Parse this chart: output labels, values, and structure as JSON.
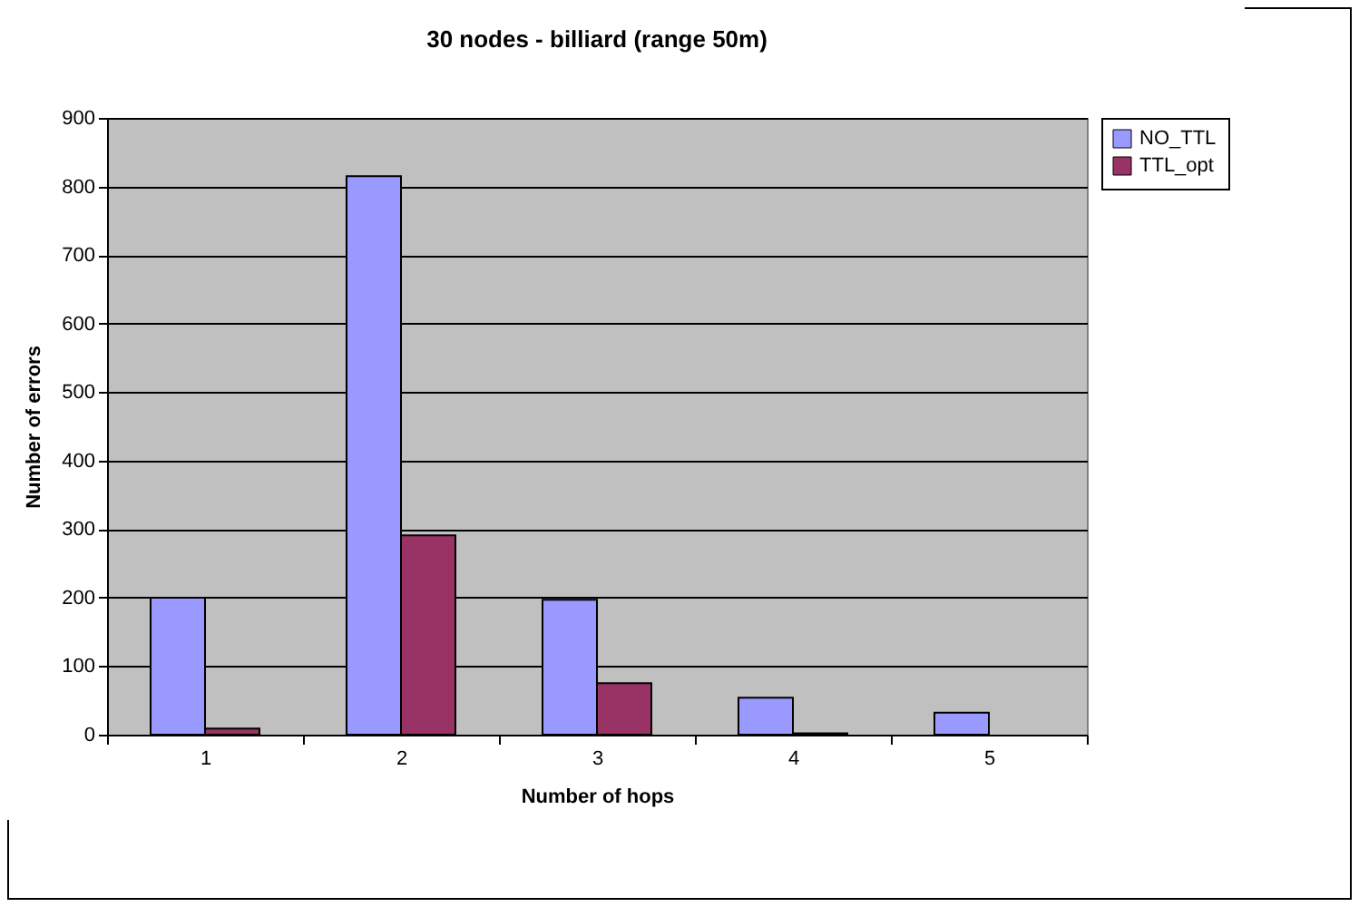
{
  "chart_data": {
    "type": "bar",
    "title": "30 nodes - billiard (range 50m)",
    "xlabel": "Number of hops",
    "ylabel": "Number of errors",
    "categories": [
      "1",
      "2",
      "3",
      "4",
      "5"
    ],
    "series": [
      {
        "name": "NO_TTL",
        "color": "#9999ff",
        "values": [
          200,
          815,
          197,
          54,
          32
        ]
      },
      {
        "name": "TTL_opt",
        "color": "#993366",
        "values": [
          9,
          291,
          75,
          2,
          null
        ]
      }
    ],
    "ylim": [
      0,
      900
    ],
    "yticks": [
      0,
      100,
      200,
      300,
      400,
      500,
      600,
      700,
      800,
      900
    ],
    "grid": "y",
    "legend": "right"
  }
}
